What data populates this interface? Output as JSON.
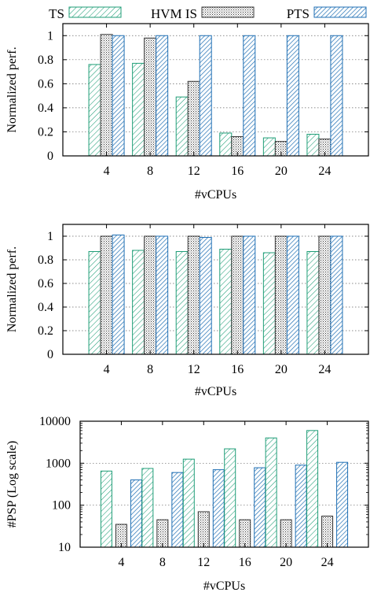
{
  "legend": {
    "items": [
      {
        "label": "TS",
        "pattern": "ts"
      },
      {
        "label": "HVM IS",
        "pattern": "hvm"
      },
      {
        "label": "PTS",
        "pattern": "pts"
      }
    ]
  },
  "colors": {
    "ts": "#1f9e77",
    "hvm": "#333333",
    "pts": "#1f6fb4",
    "grid": "#666666"
  },
  "chart_data": [
    {
      "type": "bar",
      "categories": [
        "4",
        "8",
        "12",
        "16",
        "20",
        "24"
      ],
      "series": [
        {
          "name": "TS",
          "values": [
            0.76,
            0.77,
            0.49,
            0.19,
            0.15,
            0.18
          ]
        },
        {
          "name": "HVM IS",
          "values": [
            1.01,
            0.98,
            0.62,
            0.16,
            0.12,
            0.14
          ]
        },
        {
          "name": "PTS",
          "values": [
            1.0,
            1.0,
            1.0,
            1.0,
            1.0,
            1.0
          ]
        }
      ],
      "xlabel": "#vCPUs",
      "ylabel": "Normalized perf.",
      "ylim": [
        0,
        1.1
      ],
      "yticks": [
        0,
        0.2,
        0.4,
        0.6,
        0.8,
        1
      ],
      "ytick_labels": [
        "0",
        "0.2",
        "0.4",
        "0.6",
        "0.8",
        "1"
      ],
      "log": false,
      "grid": "horizontal dotted"
    },
    {
      "type": "bar",
      "categories": [
        "4",
        "8",
        "12",
        "16",
        "20",
        "24"
      ],
      "series": [
        {
          "name": "TS",
          "values": [
            0.87,
            0.88,
            0.87,
            0.89,
            0.86,
            0.87
          ]
        },
        {
          "name": "HVM IS",
          "values": [
            1.0,
            1.0,
            1.0,
            1.0,
            1.0,
            1.0
          ]
        },
        {
          "name": "PTS",
          "values": [
            1.01,
            1.0,
            0.99,
            1.0,
            1.0,
            1.0
          ]
        }
      ],
      "xlabel": "#vCPUs",
      "ylabel": "Normalized perf.",
      "ylim": [
        0,
        1.1
      ],
      "yticks": [
        0,
        0.2,
        0.4,
        0.6,
        0.8,
        1
      ],
      "ytick_labels": [
        "0",
        "0.2",
        "0.4",
        "0.6",
        "0.8",
        "1"
      ],
      "log": false,
      "grid": "horizontal dotted"
    },
    {
      "type": "bar",
      "categories": [
        "4",
        "8",
        "12",
        "16",
        "20",
        "24"
      ],
      "series": [
        {
          "name": "TS",
          "values": [
            650,
            750,
            1250,
            2200,
            4000,
            6000
          ]
        },
        {
          "name": "HVM IS",
          "values": [
            35,
            45,
            70,
            45,
            45,
            55
          ]
        },
        {
          "name": "PTS",
          "values": [
            400,
            600,
            700,
            780,
            900,
            1050
          ]
        }
      ],
      "xlabel": "#vCPUs",
      "ylabel": "#PSP (Log scale)",
      "ylim": [
        10,
        10000
      ],
      "yticks": [
        10,
        100,
        1000,
        10000
      ],
      "ytick_labels": [
        "10",
        "100",
        "1000",
        "10000"
      ],
      "log": true,
      "grid": "horizontal dotted"
    }
  ]
}
